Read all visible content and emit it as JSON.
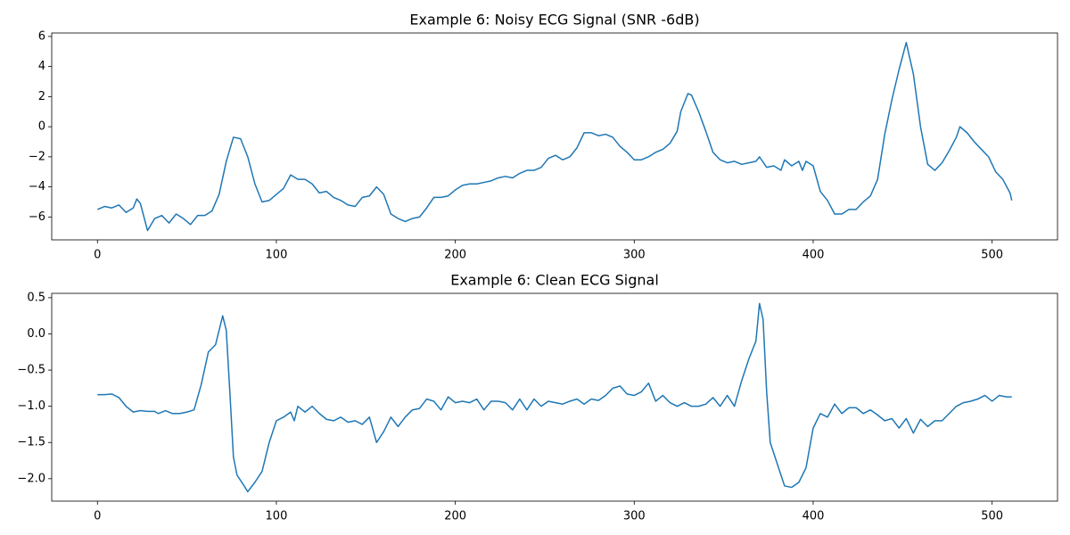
{
  "chart_data": [
    {
      "type": "line",
      "title": "Example 6: Noisy ECG Signal (SNR -6dB)",
      "color": "#1f77b4",
      "x": [
        0,
        4,
        8,
        12,
        16,
        20,
        22,
        24,
        28,
        32,
        36,
        40,
        44,
        48,
        52,
        56,
        60,
        64,
        68,
        72,
        76,
        80,
        84,
        88,
        92,
        96,
        100,
        104,
        108,
        112,
        116,
        120,
        124,
        128,
        132,
        136,
        140,
        144,
        148,
        152,
        156,
        160,
        164,
        168,
        172,
        176,
        180,
        184,
        188,
        192,
        196,
        200,
        204,
        208,
        212,
        216,
        220,
        224,
        228,
        232,
        236,
        240,
        244,
        248,
        252,
        256,
        260,
        264,
        268,
        272,
        276,
        280,
        284,
        288,
        292,
        296,
        300,
        304,
        308,
        312,
        316,
        320,
        324,
        326,
        330,
        332,
        336,
        340,
        344,
        348,
        352,
        356,
        360,
        364,
        368,
        370,
        374,
        378,
        382,
        384,
        388,
        392,
        394,
        396,
        400,
        404,
        408,
        412,
        416,
        420,
        424,
        428,
        432,
        436,
        440,
        444,
        448,
        452,
        456,
        460,
        464,
        468,
        472,
        476,
        480,
        482,
        486,
        490,
        494,
        498,
        502,
        506,
        510,
        511
      ],
      "values": [
        -5.5,
        -5.3,
        -5.4,
        -5.2,
        -5.7,
        -5.4,
        -4.8,
        -5.1,
        -6.9,
        -6.1,
        -5.9,
        -6.4,
        -5.8,
        -6.1,
        -6.5,
        -5.9,
        -5.9,
        -5.6,
        -4.5,
        -2.3,
        -0.7,
        -0.8,
        -2.0,
        -3.8,
        -5.0,
        -4.9,
        -4.5,
        -4.1,
        -3.2,
        -3.5,
        -3.5,
        -3.8,
        -4.4,
        -4.3,
        -4.7,
        -4.9,
        -5.2,
        -5.3,
        -4.7,
        -4.6,
        -4.0,
        -4.5,
        -5.8,
        -6.1,
        -6.3,
        -6.1,
        -6.0,
        -5.4,
        -4.7,
        -4.7,
        -4.6,
        -4.2,
        -3.9,
        -3.8,
        -3.8,
        -3.7,
        -3.6,
        -3.4,
        -3.3,
        -3.4,
        -3.1,
        -2.9,
        -2.9,
        -2.7,
        -2.1,
        -1.9,
        -2.2,
        -2.0,
        -1.4,
        -0.4,
        -0.4,
        -0.6,
        -0.5,
        -0.7,
        -1.3,
        -1.7,
        -2.2,
        -2.2,
        -2.0,
        -1.7,
        -1.5,
        -1.1,
        -0.3,
        1.0,
        2.2,
        2.1,
        1.0,
        -0.3,
        -1.7,
        -2.2,
        -2.4,
        -2.3,
        -2.5,
        -2.4,
        -2.3,
        -2.0,
        -2.7,
        -2.6,
        -2.9,
        -2.2,
        -2.6,
        -2.3,
        -2.9,
        -2.3,
        -2.6,
        -4.3,
        -4.9,
        -5.8,
        -5.8,
        -5.5,
        -5.5,
        -5.0,
        -4.6,
        -3.5,
        -0.5,
        1.8,
        3.8,
        5.6,
        3.5,
        0.0,
        -2.5,
        -2.9,
        -2.4,
        -1.6,
        -0.7,
        0.0,
        -0.4,
        -1.0,
        -1.5,
        -2.0,
        -3.0,
        -3.5,
        -4.4,
        -4.9
      ],
      "xlim": [
        -25.55,
        536.55
      ],
      "ylim": [
        -7.52,
        6.23
      ],
      "xticks": [
        0,
        100,
        200,
        300,
        400,
        500
      ],
      "yticks": [
        {
          "value": -6,
          "label": "−6"
        },
        {
          "value": -4,
          "label": "−4"
        },
        {
          "value": -2,
          "label": "−2"
        },
        0,
        2,
        4,
        6
      ]
    },
    {
      "type": "line",
      "title": "Example 6: Clean ECG Signal",
      "color": "#1f77b4",
      "x": [
        0,
        4,
        8,
        12,
        16,
        20,
        24,
        28,
        32,
        34,
        38,
        42,
        46,
        50,
        54,
        58,
        62,
        66,
        70,
        72,
        74,
        76,
        78,
        82,
        84,
        88,
        92,
        96,
        100,
        104,
        108,
        110,
        112,
        116,
        120,
        124,
        128,
        132,
        136,
        140,
        144,
        148,
        152,
        156,
        160,
        164,
        168,
        172,
        176,
        180,
        184,
        188,
        192,
        196,
        200,
        204,
        208,
        212,
        216,
        220,
        224,
        228,
        232,
        236,
        240,
        244,
        248,
        252,
        256,
        260,
        264,
        268,
        272,
        276,
        280,
        284,
        288,
        292,
        296,
        300,
        304,
        308,
        312,
        316,
        320,
        324,
        328,
        332,
        336,
        340,
        344,
        348,
        352,
        356,
        360,
        364,
        368,
        370,
        372,
        374,
        376,
        380,
        384,
        388,
        392,
        396,
        400,
        404,
        408,
        412,
        416,
        420,
        424,
        428,
        432,
        436,
        440,
        444,
        448,
        452,
        456,
        460,
        464,
        468,
        472,
        476,
        480,
        484,
        488,
        492,
        496,
        500,
        504,
        508,
        511
      ],
      "values": [
        -0.84,
        -0.84,
        -0.83,
        -0.88,
        -1.0,
        -1.08,
        -1.06,
        -1.07,
        -1.07,
        -1.1,
        -1.06,
        -1.1,
        -1.1,
        -1.08,
        -1.05,
        -0.7,
        -0.25,
        -0.15,
        0.25,
        0.05,
        -0.8,
        -1.7,
        -1.95,
        -2.1,
        -2.18,
        -2.05,
        -1.9,
        -1.5,
        -1.2,
        -1.15,
        -1.08,
        -1.2,
        -1.0,
        -1.08,
        -1.0,
        -1.1,
        -1.18,
        -1.2,
        -1.15,
        -1.22,
        -1.2,
        -1.25,
        -1.15,
        -1.5,
        -1.35,
        -1.15,
        -1.28,
        -1.15,
        -1.05,
        -1.03,
        -0.9,
        -0.93,
        -1.05,
        -0.87,
        -0.95,
        -0.93,
        -0.95,
        -0.9,
        -1.05,
        -0.93,
        -0.93,
        -0.95,
        -1.05,
        -0.9,
        -1.05,
        -0.9,
        -1.0,
        -0.93,
        -0.95,
        -0.97,
        -0.93,
        -0.9,
        -0.97,
        -0.9,
        -0.92,
        -0.85,
        -0.75,
        -0.72,
        -0.83,
        -0.85,
        -0.8,
        -0.68,
        -0.93,
        -0.85,
        -0.95,
        -1.0,
        -0.95,
        -1.0,
        -1.0,
        -0.97,
        -0.88,
        -1.0,
        -0.85,
        -1.0,
        -0.65,
        -0.35,
        -0.1,
        0.42,
        0.2,
        -0.8,
        -1.5,
        -1.8,
        -2.1,
        -2.12,
        -2.05,
        -1.85,
        -1.3,
        -1.1,
        -1.15,
        -0.97,
        -1.1,
        -1.02,
        -1.02,
        -1.1,
        -1.05,
        -1.12,
        -1.2,
        -1.17,
        -1.3,
        -1.17,
        -1.37,
        -1.18,
        -1.28,
        -1.2,
        -1.2,
        -1.1,
        -1.0,
        -0.95,
        -0.93,
        -0.9,
        -0.85,
        -0.93,
        -0.85,
        -0.87,
        -0.87
      ],
      "xlim": [
        -25.55,
        536.55
      ],
      "ylim": [
        -2.31,
        0.56
      ],
      "xticks": [
        0,
        100,
        200,
        300,
        400,
        500
      ],
      "yticks": [
        {
          "value": -2,
          "label": "−2.0"
        },
        {
          "value": -1.5,
          "label": "−1.5"
        },
        {
          "value": -1,
          "label": "−1.0"
        },
        {
          "value": -0.5,
          "label": "−0.5"
        },
        {
          "value": 0,
          "label": "0.0"
        },
        {
          "value": 0.5,
          "label": "0.5"
        }
      ]
    }
  ]
}
